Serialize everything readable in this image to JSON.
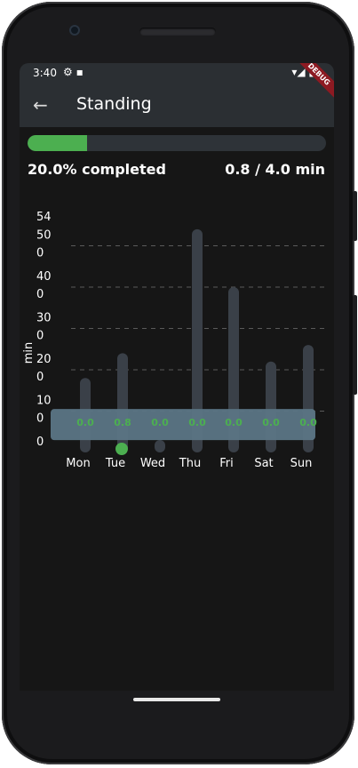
{
  "status_bar": {
    "time": "3:40",
    "left_icons": "⚙ ▪",
    "right_icons": "▾◢ ▮"
  },
  "app_bar": {
    "title": "Standing",
    "debug_label": "DEBUG"
  },
  "progress": {
    "fraction": 0.2,
    "percent_text": "20.0% completed",
    "ratio_text": "0.8 / 4.0 min"
  },
  "chart_data": {
    "type": "bar",
    "categories": [
      "Mon",
      "Tue",
      "Wed",
      "Thu",
      "Fri",
      "Sat",
      "Sun"
    ],
    "values": [
      0.0,
      0.8,
      0.0,
      0.0,
      0.0,
      0.0,
      0.0
    ],
    "value_labels": [
      "0.0",
      "0.8",
      "0.0",
      "0.0",
      "0.0",
      "0.0",
      "0.0"
    ],
    "background_bar_values": [
      18,
      24,
      3,
      54,
      40,
      22,
      26
    ],
    "y_ticks": [
      {
        "value": 0,
        "label": "0"
      },
      {
        "value": 10,
        "label": "10\n0"
      },
      {
        "value": 20,
        "label": "20\n0"
      },
      {
        "value": 30,
        "label": "30\n0"
      },
      {
        "value": 40,
        "label": "40\n0"
      },
      {
        "value": 50,
        "label": "50\n0"
      },
      {
        "value": 54,
        "label": "54"
      }
    ],
    "ylabel": "min",
    "ylim": [
      0,
      54
    ],
    "selected_index": 1,
    "grid": true,
    "colors": {
      "bar": "#3a4048",
      "value": "#4caf50",
      "overlay": "#5b7585",
      "grid": "#5a5a5a"
    }
  }
}
